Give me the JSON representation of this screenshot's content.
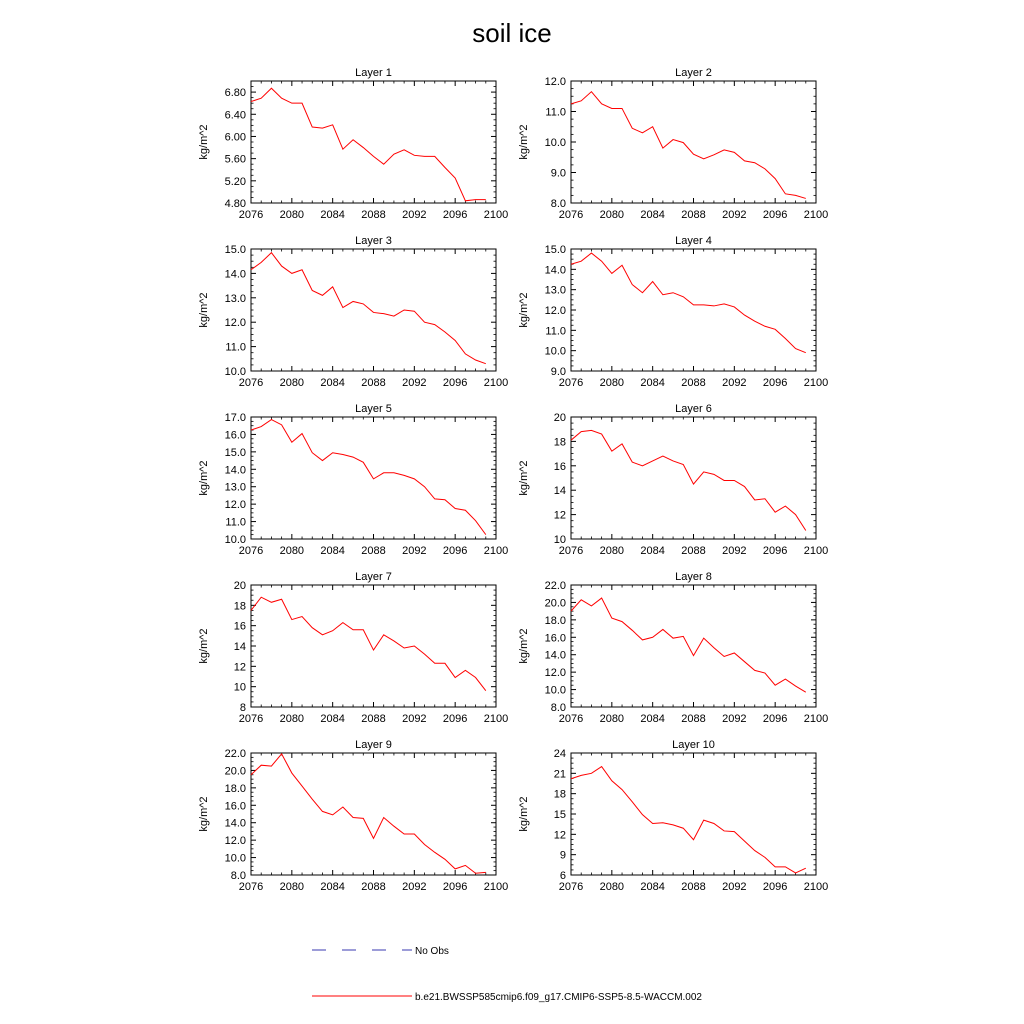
{
  "figure": {
    "title": "soil ice",
    "legend": {
      "obs_label": "No Obs",
      "model_label": "b.e21.BWSSP585cmip6.f09_g17.CMIP6-SSP5-8.5-WACCM.002",
      "model_color": "#ff0000",
      "obs_color": "#3a3ab0"
    }
  },
  "chart_data": [
    {
      "type": "line",
      "title": "Layer 1",
      "ylabel": "kg/m^2",
      "xlabel": "",
      "xlim": [
        2076,
        2100
      ],
      "xticks": [
        "2076",
        "2080",
        "2084",
        "2088",
        "2092",
        "2096",
        "2100"
      ],
      "ylim": [
        4.8,
        7.0
      ],
      "yticks": [
        "4.80",
        "5.20",
        "5.60",
        "6.00",
        "6.40",
        "6.80"
      ],
      "x": [
        2076,
        2077,
        2078,
        2079,
        2080,
        2081,
        2082,
        2083,
        2084,
        2085,
        2086,
        2087,
        2088,
        2089,
        2090,
        2091,
        2092,
        2093,
        2094,
        2095,
        2096,
        2097,
        2098,
        2099
      ],
      "series": [
        {
          "name": "b.e21.BWSSP585cmip6.f09_g17.CMIP6-SSP5-8.5-WACCM.002",
          "values": [
            6.63,
            6.69,
            6.87,
            6.69,
            6.6,
            6.6,
            6.17,
            6.15,
            6.21,
            5.77,
            5.94,
            5.8,
            5.64,
            5.5,
            5.68,
            5.76,
            5.66,
            5.64,
            5.64,
            5.44,
            5.25,
            4.84,
            4.86,
            4.86
          ]
        }
      ]
    },
    {
      "type": "line",
      "title": "Layer 2",
      "ylabel": "kg/m^2",
      "xlabel": "",
      "xlim": [
        2076,
        2100
      ],
      "xticks": [
        "2076",
        "2080",
        "2084",
        "2088",
        "2092",
        "2096",
        "2100"
      ],
      "ylim": [
        8.0,
        12.0
      ],
      "yticks": [
        "8.0",
        "9.0",
        "10.0",
        "11.0",
        "12.0"
      ],
      "x": [
        2076,
        2077,
        2078,
        2079,
        2080,
        2081,
        2082,
        2083,
        2084,
        2085,
        2086,
        2087,
        2088,
        2089,
        2090,
        2091,
        2092,
        2093,
        2094,
        2095,
        2096,
        2097,
        2098,
        2099
      ],
      "series": [
        {
          "name": "b.e21.BWSSP585cmip6.f09_g17.CMIP6-SSP5-8.5-WACCM.002",
          "values": [
            11.25,
            11.35,
            11.65,
            11.25,
            11.1,
            11.1,
            10.45,
            10.3,
            10.5,
            9.8,
            10.08,
            9.98,
            9.6,
            9.45,
            9.58,
            9.74,
            9.66,
            9.38,
            9.32,
            9.12,
            8.8,
            8.3,
            8.25,
            8.15
          ]
        }
      ]
    },
    {
      "type": "line",
      "title": "Layer 3",
      "ylabel": "kg/m^2",
      "xlabel": "",
      "xlim": [
        2076,
        2100
      ],
      "xticks": [
        "2076",
        "2080",
        "2084",
        "2088",
        "2092",
        "2096",
        "2100"
      ],
      "ylim": [
        10.0,
        15.0
      ],
      "yticks": [
        "10.0",
        "11.0",
        "12.0",
        "13.0",
        "14.0",
        "15.0"
      ],
      "x": [
        2076,
        2077,
        2078,
        2079,
        2080,
        2081,
        2082,
        2083,
        2084,
        2085,
        2086,
        2087,
        2088,
        2089,
        2090,
        2091,
        2092,
        2093,
        2094,
        2095,
        2096,
        2097,
        2098,
        2099
      ],
      "series": [
        {
          "name": "b.e21.BWSSP585cmip6.f09_g17.CMIP6-SSP5-8.5-WACCM.002",
          "values": [
            14.15,
            14.45,
            14.85,
            14.3,
            14.0,
            14.15,
            13.3,
            13.1,
            13.45,
            12.6,
            12.85,
            12.75,
            12.4,
            12.35,
            12.25,
            12.5,
            12.45,
            12.0,
            11.9,
            11.6,
            11.25,
            10.7,
            10.45,
            10.3
          ]
        }
      ]
    },
    {
      "type": "line",
      "title": "Layer 4",
      "ylabel": "kg/m^2",
      "xlabel": "",
      "xlim": [
        2076,
        2100
      ],
      "xticks": [
        "2076",
        "2080",
        "2084",
        "2088",
        "2092",
        "2096",
        "2100"
      ],
      "ylim": [
        9.0,
        15.0
      ],
      "yticks": [
        "9.0",
        "10.0",
        "11.0",
        "12.0",
        "13.0",
        "14.0",
        "15.0"
      ],
      "x": [
        2076,
        2077,
        2078,
        2079,
        2080,
        2081,
        2082,
        2083,
        2084,
        2085,
        2086,
        2087,
        2088,
        2089,
        2090,
        2091,
        2092,
        2093,
        2094,
        2095,
        2096,
        2097,
        2098,
        2099
      ],
      "series": [
        {
          "name": "b.e21.BWSSP585cmip6.f09_g17.CMIP6-SSP5-8.5-WACCM.002",
          "values": [
            14.25,
            14.4,
            14.8,
            14.4,
            13.8,
            14.2,
            13.25,
            12.85,
            13.4,
            12.75,
            12.85,
            12.65,
            12.25,
            12.25,
            12.2,
            12.3,
            12.15,
            11.75,
            11.45,
            11.2,
            11.05,
            10.6,
            10.1,
            9.9
          ]
        }
      ]
    },
    {
      "type": "line",
      "title": "Layer 5",
      "ylabel": "kg/m^2",
      "xlabel": "",
      "xlim": [
        2076,
        2100
      ],
      "xticks": [
        "2076",
        "2080",
        "2084",
        "2088",
        "2092",
        "2096",
        "2100"
      ],
      "ylim": [
        10.0,
        17.0
      ],
      "yticks": [
        "10.0",
        "11.0",
        "12.0",
        "13.0",
        "14.0",
        "15.0",
        "16.0",
        "17.0"
      ],
      "x": [
        2076,
        2077,
        2078,
        2079,
        2080,
        2081,
        2082,
        2083,
        2084,
        2085,
        2086,
        2087,
        2088,
        2089,
        2090,
        2091,
        2092,
        2093,
        2094,
        2095,
        2096,
        2097,
        2098,
        2099
      ],
      "series": [
        {
          "name": "b.e21.BWSSP585cmip6.f09_g17.CMIP6-SSP5-8.5-WACCM.002",
          "values": [
            16.25,
            16.45,
            16.85,
            16.55,
            15.55,
            16.05,
            14.95,
            14.5,
            14.95,
            14.85,
            14.7,
            14.4,
            13.45,
            13.8,
            13.8,
            13.65,
            13.45,
            13.0,
            12.3,
            12.25,
            11.75,
            11.65,
            11.05,
            10.25
          ]
        }
      ]
    },
    {
      "type": "line",
      "title": "Layer 6",
      "ylabel": "kg/m^2",
      "xlabel": "",
      "xlim": [
        2076,
        2100
      ],
      "xticks": [
        "2076",
        "2080",
        "2084",
        "2088",
        "2092",
        "2096",
        "2100"
      ],
      "ylim": [
        10,
        20
      ],
      "yticks": [
        "10",
        "12",
        "14",
        "16",
        "18",
        "20"
      ],
      "x": [
        2076,
        2077,
        2078,
        2079,
        2080,
        2081,
        2082,
        2083,
        2084,
        2085,
        2086,
        2087,
        2088,
        2089,
        2090,
        2091,
        2092,
        2093,
        2094,
        2095,
        2096,
        2097,
        2098,
        2099
      ],
      "series": [
        {
          "name": "b.e21.BWSSP585cmip6.f09_g17.CMIP6-SSP5-8.5-WACCM.002",
          "values": [
            18.1,
            18.8,
            18.9,
            18.6,
            17.2,
            17.8,
            16.3,
            16.0,
            16.4,
            16.8,
            16.4,
            16.1,
            14.5,
            15.5,
            15.3,
            14.8,
            14.8,
            14.3,
            13.2,
            13.3,
            12.2,
            12.7,
            12.0,
            10.7
          ]
        }
      ]
    },
    {
      "type": "line",
      "title": "Layer 7",
      "ylabel": "kg/m^2",
      "xlabel": "",
      "xlim": [
        2076,
        2100
      ],
      "xticks": [
        "2076",
        "2080",
        "2084",
        "2088",
        "2092",
        "2096",
        "2100"
      ],
      "ylim": [
        8,
        20
      ],
      "yticks": [
        "8",
        "10",
        "12",
        "14",
        "16",
        "18",
        "20"
      ],
      "x": [
        2076,
        2077,
        2078,
        2079,
        2080,
        2081,
        2082,
        2083,
        2084,
        2085,
        2086,
        2087,
        2088,
        2089,
        2090,
        2091,
        2092,
        2093,
        2094,
        2095,
        2096,
        2097,
        2098,
        2099
      ],
      "series": [
        {
          "name": "b.e21.BWSSP585cmip6.f09_g17.CMIP6-SSP5-8.5-WACCM.002",
          "values": [
            17.5,
            18.8,
            18.3,
            18.6,
            16.6,
            16.9,
            15.8,
            15.1,
            15.5,
            16.3,
            15.6,
            15.6,
            13.6,
            15.1,
            14.5,
            13.8,
            14.0,
            13.2,
            12.3,
            12.3,
            10.9,
            11.6,
            10.9,
            9.6
          ]
        }
      ]
    },
    {
      "type": "line",
      "title": "Layer 8",
      "ylabel": "kg/m^2",
      "xlabel": "",
      "xlim": [
        2076,
        2100
      ],
      "xticks": [
        "2076",
        "2080",
        "2084",
        "2088",
        "2092",
        "2096",
        "2100"
      ],
      "ylim": [
        8.0,
        22.0
      ],
      "yticks": [
        "8.0",
        "10.0",
        "12.0",
        "14.0",
        "16.0",
        "18.0",
        "20.0",
        "22.0"
      ],
      "x": [
        2076,
        2077,
        2078,
        2079,
        2080,
        2081,
        2082,
        2083,
        2084,
        2085,
        2086,
        2087,
        2088,
        2089,
        2090,
        2091,
        2092,
        2093,
        2094,
        2095,
        2096,
        2097,
        2098,
        2099
      ],
      "series": [
        {
          "name": "b.e21.BWSSP585cmip6.f09_g17.CMIP6-SSP5-8.5-WACCM.002",
          "values": [
            19.0,
            20.3,
            19.6,
            20.5,
            18.2,
            17.8,
            16.8,
            15.7,
            16.0,
            16.9,
            15.9,
            16.1,
            13.9,
            15.9,
            14.8,
            13.8,
            14.2,
            13.2,
            12.2,
            11.9,
            10.5,
            11.2,
            10.4,
            9.7
          ]
        }
      ]
    },
    {
      "type": "line",
      "title": "Layer 9",
      "ylabel": "kg/m^2",
      "xlabel": "",
      "xlim": [
        2076,
        2100
      ],
      "xticks": [
        "2076",
        "2080",
        "2084",
        "2088",
        "2092",
        "2096",
        "2100"
      ],
      "ylim": [
        8.0,
        22.0
      ],
      "yticks": [
        "8.0",
        "10.0",
        "12.0",
        "14.0",
        "16.0",
        "18.0",
        "20.0",
        "22.0"
      ],
      "x": [
        2076,
        2077,
        2078,
        2079,
        2080,
        2081,
        2082,
        2083,
        2084,
        2085,
        2086,
        2087,
        2088,
        2089,
        2090,
        2091,
        2092,
        2093,
        2094,
        2095,
        2096,
        2097,
        2098,
        2099
      ],
      "series": [
        {
          "name": "b.e21.BWSSP585cmip6.f09_g17.CMIP6-SSP5-8.5-WACCM.002",
          "values": [
            19.5,
            20.6,
            20.5,
            21.9,
            19.7,
            18.2,
            16.7,
            15.3,
            14.9,
            15.8,
            14.6,
            14.5,
            12.2,
            14.6,
            13.6,
            12.7,
            12.7,
            11.5,
            10.6,
            9.8,
            8.7,
            9.1,
            8.2,
            8.3
          ]
        }
      ]
    },
    {
      "type": "line",
      "title": "Layer 10",
      "ylabel": "kg/m^2",
      "xlabel": "",
      "xlim": [
        2076,
        2100
      ],
      "xticks": [
        "2076",
        "2080",
        "2084",
        "2088",
        "2092",
        "2096",
        "2100"
      ],
      "ylim": [
        6,
        24
      ],
      "yticks": [
        "6",
        "9",
        "12",
        "15",
        "18",
        "21",
        "24"
      ],
      "x": [
        2076,
        2077,
        2078,
        2079,
        2080,
        2081,
        2082,
        2083,
        2084,
        2085,
        2086,
        2087,
        2088,
        2089,
        2090,
        2091,
        2092,
        2093,
        2094,
        2095,
        2096,
        2097,
        2098,
        2099
      ],
      "series": [
        {
          "name": "b.e21.BWSSP585cmip6.f09_g17.CMIP6-SSP5-8.5-WACCM.002",
          "values": [
            20.2,
            20.7,
            21.0,
            22.0,
            19.9,
            18.6,
            16.8,
            14.9,
            13.6,
            13.7,
            13.4,
            12.9,
            11.2,
            14.1,
            13.6,
            12.5,
            12.4,
            11.0,
            9.6,
            8.6,
            7.2,
            7.2,
            6.3,
            7.0
          ]
        }
      ]
    }
  ]
}
